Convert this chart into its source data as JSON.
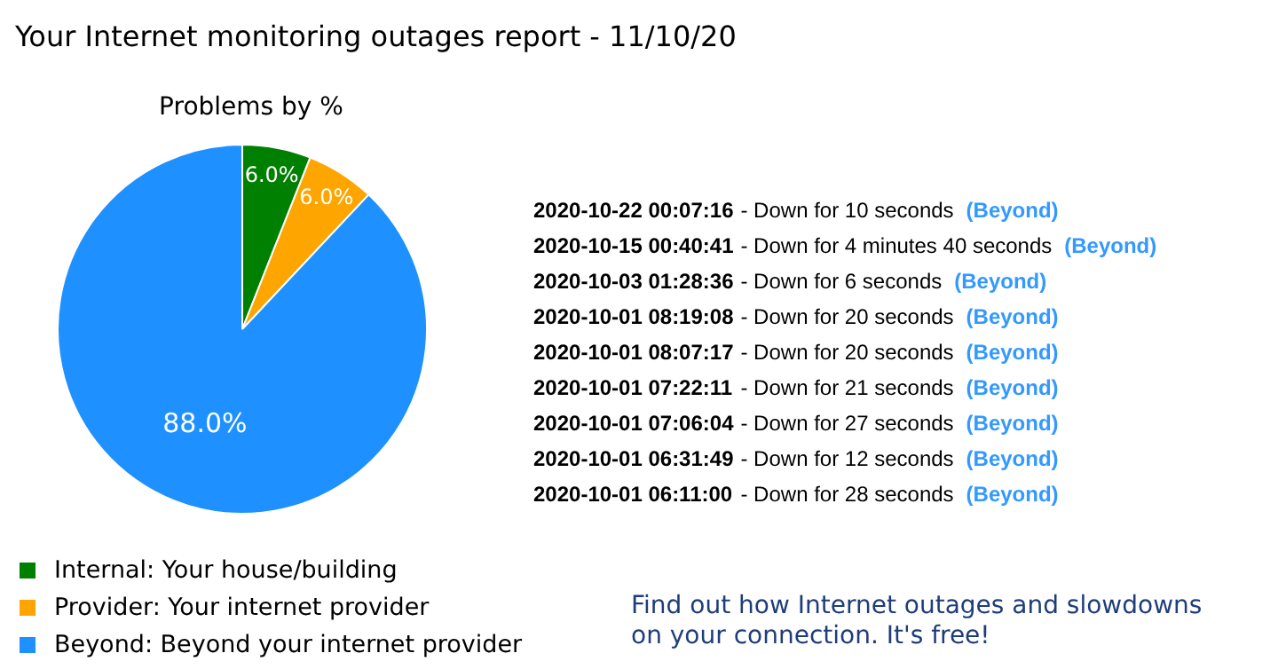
{
  "chart_data": {
    "type": "pie",
    "title": "Your Internet monitoring outages report - 11/10/20",
    "subtitle": "Problems by %",
    "categories": [
      "Internal: Your house/building",
      "Provider: Your internet provider",
      "Beyond: Beyond your internet provider"
    ],
    "values": [
      6.0,
      6.0,
      88.0
    ],
    "colors": [
      "#008000",
      "#ffa500",
      "#1e90ff"
    ],
    "value_labels": [
      "6.0%",
      "6.0%",
      "88.0%"
    ],
    "legend": "bottom",
    "annotations": [
      "2020-10-22 00:07:16 - Down for 10 seconds (Beyond)",
      "2020-10-15 00:40:41 - Down for 4 minutes 40 seconds (Beyond)",
      "2020-10-03 01:28:36 - Down for 6 seconds (Beyond)",
      "2020-10-01 08:19:08 - Down for 20 seconds (Beyond)",
      "2020-10-01 08:07:17 - Down for 20 seconds (Beyond)",
      "2020-10-01 07:22:11 - Down for 21 seconds (Beyond)",
      "2020-10-01 07:06:04 - Down for 27 seconds (Beyond)",
      "2020-10-01 06:31:49 - Down for 12 seconds (Beyond)",
      "2020-10-01 06:11:00 - Down for 28 seconds (Beyond)",
      "Find out how Internet outages and slowdowns on your connection. It's free!"
    ]
  }
}
